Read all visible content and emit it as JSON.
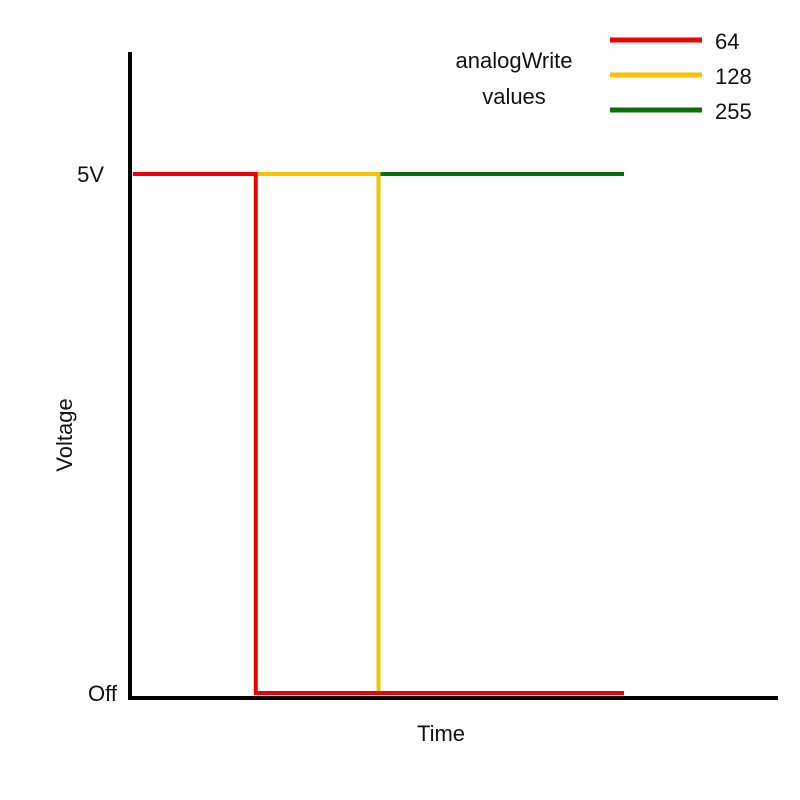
{
  "chart_data": {
    "type": "line",
    "xlabel": "Time",
    "ylabel": "Voltage",
    "y_tick_labels": [
      "Off",
      "5V"
    ],
    "ylim": [
      0,
      5
    ],
    "legend": {
      "title_line1": "analogWrite",
      "title_line2": "values",
      "placement": "top-right"
    },
    "series": [
      {
        "name": "64",
        "color": "#ee0000",
        "points": [
          [
            0,
            5
          ],
          [
            0.25,
            5
          ],
          [
            0.25,
            0
          ],
          [
            1,
            0
          ]
        ]
      },
      {
        "name": "128",
        "color": "#f5c400",
        "points": [
          [
            0,
            5
          ],
          [
            0.5,
            5
          ],
          [
            0.5,
            0
          ],
          [
            1,
            0
          ]
        ]
      },
      {
        "name": "255",
        "color": "#0a6e0a",
        "points": [
          [
            0,
            5
          ],
          [
            1,
            5
          ]
        ]
      }
    ]
  }
}
